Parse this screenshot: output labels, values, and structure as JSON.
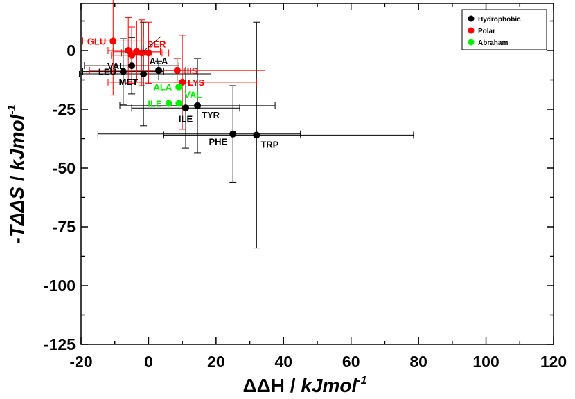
{
  "chart_data": {
    "type": "scatter",
    "x_label_main": "ΔΔH",
    "x_label_unit": "kJmol",
    "x_label_exp": "-1",
    "y_label_main": "-TΔΔS",
    "y_label_unit": "kJmol",
    "y_label_exp": "-1",
    "xlim": [
      -20,
      120
    ],
    "ylim": [
      -125,
      20
    ],
    "xticks": [
      -20,
      0,
      20,
      40,
      60,
      80,
      100,
      120
    ],
    "yticks": [
      0,
      -25,
      -50,
      -75,
      -100,
      -125
    ],
    "legend_position": "top-right",
    "series": [
      {
        "name": "Hydrophobic",
        "color": "#000000",
        "points": [
          {
            "label": "VAL",
            "x": -5,
            "y": -6.5,
            "xerr": [
              14,
              14
            ],
            "yerr": [
              12,
              12
            ],
            "anchor": "left"
          },
          {
            "label": "LEU",
            "x": -7.5,
            "y": -9,
            "xerr": [
              12,
              12
            ],
            "yerr": [
              14,
              14
            ],
            "anchor": "left"
          },
          {
            "label": "MET",
            "x": -1.5,
            "y": -10,
            "xerr": [
              19,
              20
            ],
            "yerr": [
              22,
              22
            ],
            "anchor": "below-left"
          },
          {
            "label": "ALA",
            "x": 3,
            "y": -8.5,
            "xerr": [
              8,
              8
            ],
            "yerr": [
              4,
              4
            ],
            "anchor": "above"
          },
          {
            "label": "ILE",
            "x": 11,
            "y": -24.5,
            "xerr": [
              16,
              16
            ],
            "yerr": [
              17,
              17
            ],
            "anchor": "below"
          },
          {
            "label": "TYR",
            "x": 14.5,
            "y": -23.5,
            "xerr": [
              23,
              23
            ],
            "yerr": [
              20,
              20
            ],
            "anchor": "below-right"
          },
          {
            "label": "PHE",
            "x": 25,
            "y": -35.5,
            "xerr": [
              40,
              20
            ],
            "yerr": [
              20.5,
              20.5
            ],
            "anchor": "below-left"
          },
          {
            "label": "TRP",
            "x": 32,
            "y": -36,
            "xerr": [
              27.5,
              46.5
            ],
            "yerr": [
              48,
              48
            ],
            "anchor": "below-right"
          }
        ]
      },
      {
        "name": "Polar",
        "color": "#ff0000",
        "points": [
          {
            "label": "GLU",
            "x": -10.5,
            "y": 4,
            "xerr": [
              9,
              9
            ],
            "yerr": [
              23,
              23
            ],
            "anchor": "left"
          },
          {
            "label": "SER",
            "x": -2,
            "y": -1,
            "xerr": [
              6,
              6
            ],
            "yerr": [
              14,
              14
            ],
            "anchor": "above-right"
          },
          {
            "label": "",
            "x": -6,
            "y": 0,
            "xerr": [
              6,
              6
            ],
            "yerr": [
              14,
              14
            ],
            "anchor": "none"
          },
          {
            "label": "",
            "x": -5,
            "y": -2,
            "xerr": [
              6,
              6
            ],
            "yerr": [
              12,
              12
            ],
            "anchor": "none"
          },
          {
            "label": "",
            "x": -3.5,
            "y": -0.5,
            "xerr": [
              7,
              7
            ],
            "yerr": [
              13,
              13
            ],
            "anchor": "none"
          },
          {
            "label": "",
            "x": 0,
            "y": -1,
            "xerr": [
              6,
              6
            ],
            "yerr": [
              13,
              13
            ],
            "anchor": "none"
          },
          {
            "label": "HIS",
            "x": 8.5,
            "y": -8.5,
            "xerr": [
              26,
              26
            ],
            "yerr": [
              5,
              5
            ],
            "anchor": "right"
          },
          {
            "label": "LYS",
            "x": 10,
            "y": -13.5,
            "xerr": [
              22,
              22
            ],
            "yerr": [
              20,
              20
            ],
            "anchor": "right"
          }
        ]
      },
      {
        "name": "Abraham",
        "color": "#00ee00",
        "points": [
          {
            "label": "ALA",
            "x": 9,
            "y": -15.5,
            "xerr": [
              0,
              0
            ],
            "yerr": [
              0,
              0
            ],
            "anchor": "left"
          },
          {
            "label": "ILE",
            "x": 6,
            "y": -22.5,
            "xerr": [
              0,
              0
            ],
            "yerr": [
              0,
              0
            ],
            "anchor": "left"
          },
          {
            "label": "VAL",
            "x": 9,
            "y": -22.5,
            "xerr": [
              0,
              0
            ],
            "yerr": [
              0,
              0
            ],
            "anchor": "above-right"
          }
        ]
      }
    ]
  }
}
